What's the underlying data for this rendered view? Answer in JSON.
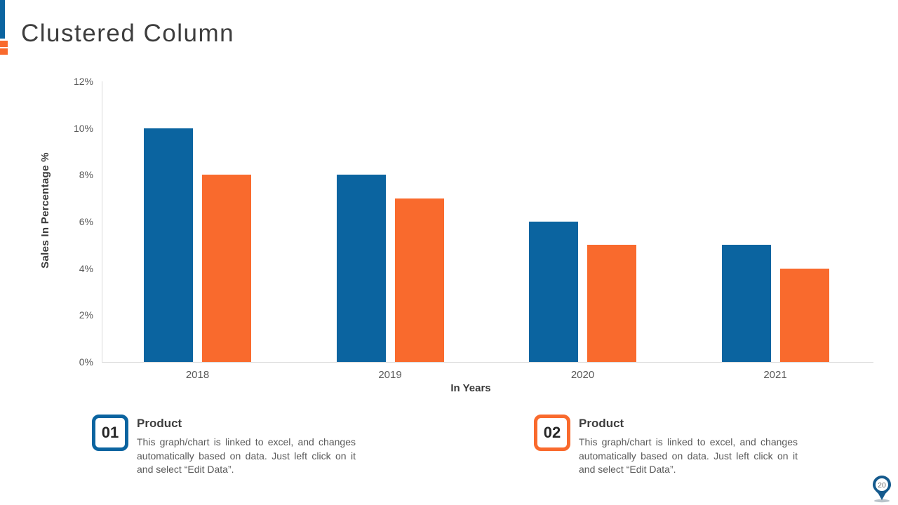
{
  "slide": {
    "title": "Clustered Column"
  },
  "chart_data": {
    "type": "bar",
    "categories": [
      "2018",
      "2019",
      "2020",
      "2021"
    ],
    "series": [
      {
        "name": "Product 01",
        "color": "#0b64a0",
        "values": [
          10,
          8,
          6,
          5
        ]
      },
      {
        "name": "Product 02",
        "color": "#f96a2d",
        "values": [
          8,
          7,
          5,
          4
        ]
      }
    ],
    "title": "",
    "xlabel": "In Years",
    "ylabel": "Sales In Percentage %",
    "ylim": [
      0,
      12
    ],
    "ytick_step": 2,
    "ytick_labels": [
      "0%",
      "2%",
      "4%",
      "6%",
      "8%",
      "10%",
      "12%"
    ],
    "grid": false,
    "legend_position": "none"
  },
  "callouts": [
    {
      "number": "01",
      "accent": "#0b64a0",
      "title": "Product",
      "body": "This graph/chart is linked to excel, and changes automatically based on data. Just left click on it and select “Edit Data”."
    },
    {
      "number": "02",
      "accent": "#f96a2d",
      "title": "Product",
      "body": "This graph/chart is linked to excel, and changes automatically based on data. Just left click on it and select “Edit Data”."
    }
  ],
  "page_badge": {
    "number": "20"
  },
  "colors": {
    "bar_blue": "#0b64a0",
    "bar_orange": "#f96a2d",
    "axis_line": "#d9d9d9",
    "tick_text": "#595959",
    "heading_text": "#3d3d3d",
    "body_text": "#595959",
    "pin_blue": "#155a8d",
    "pin_shadow": "#93a3ad",
    "pin_number_text": "#6f6f6f"
  }
}
